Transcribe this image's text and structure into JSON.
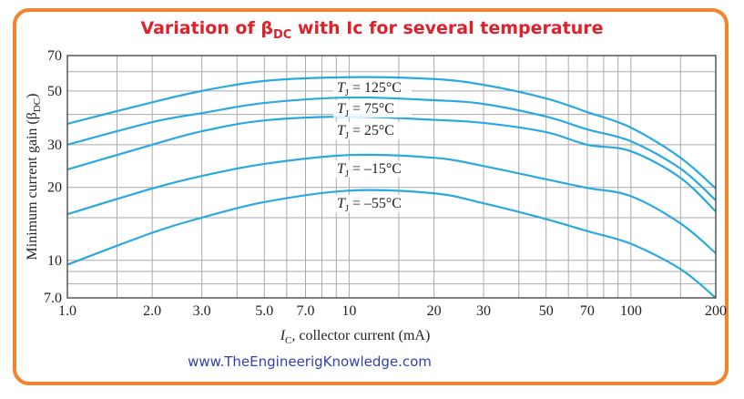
{
  "chart_data": {
    "type": "line",
    "title": "Variation of βDC with Ic for several temperature",
    "title_parts": {
      "pre": "Variation of β",
      "sub": "DC",
      "post": " with Ic for several temperature"
    },
    "xlabel": "I_C, collector current (mA)",
    "xlabel_parts": {
      "sym": "I",
      "sub": "C",
      "rest": ", collector current (mA)"
    },
    "ylabel": "Minimum current gain (βDC)",
    "ylabel_parts": {
      "pre": "Minimum current gain (β",
      "sub": "DC",
      "post": ")"
    },
    "x_scale": "log",
    "y_scale": "log",
    "xlim": [
      1,
      200
    ],
    "ylim": [
      7,
      70
    ],
    "grid": true,
    "x_ticks": [
      1,
      2,
      3,
      5,
      7,
      10,
      20,
      30,
      50,
      70,
      100,
      200
    ],
    "x_tick_labels": [
      "1.0",
      "2.0",
      "3.0",
      "5.0",
      "7.0",
      "10",
      "20",
      "30",
      "50",
      "70",
      "100",
      "200"
    ],
    "y_ticks": [
      7,
      10,
      20,
      30,
      50,
      70
    ],
    "y_tick_labels": [
      "7.0",
      "10",
      "20",
      "30",
      "50",
      "70"
    ],
    "x_grid": [
      1,
      1.5,
      2,
      3,
      4,
      5,
      6,
      7,
      8,
      9,
      10,
      15,
      20,
      30,
      40,
      50,
      60,
      70,
      80,
      90,
      100,
      150,
      200
    ],
    "y_grid": [
      7,
      8,
      9,
      10,
      15,
      20,
      30,
      40,
      50,
      60,
      70
    ],
    "line_color": "#2aa9e0",
    "x": [
      1,
      2,
      3,
      5,
      10,
      20,
      30,
      50,
      70,
      100,
      150,
      200
    ],
    "series": [
      {
        "name": "T_J = 125°C",
        "label_sym": "T",
        "label_sub": "J",
        "label_rest": " = 125°C",
        "values": [
          36.6,
          44.9,
          50,
          55,
          57,
          56,
          53,
          46.6,
          40.9,
          35.3,
          26.5,
          19.8
        ]
      },
      {
        "name": "T_J = 75°C",
        "label_sym": "T",
        "label_sub": "J",
        "label_rest": " = 75°C",
        "values": [
          30,
          37.2,
          40.5,
          44.6,
          47,
          45.8,
          44.2,
          39.2,
          34.7,
          31,
          23.9,
          17.7
        ]
      },
      {
        "name": "T_J = 25°C",
        "label_sym": "T",
        "label_sub": "J",
        "label_rest": " = 25°C",
        "values": [
          23.7,
          30,
          34.1,
          37.8,
          39.2,
          38,
          36.9,
          33.8,
          30,
          28.2,
          21.9,
          15.9
        ]
      },
      {
        "name": "T_J = –15°C",
        "label_sym": "T",
        "label_sub": "J",
        "label_rest": " = –15°C",
        "values": [
          15.5,
          19.8,
          22.3,
          25,
          27.2,
          26.5,
          24.5,
          21.6,
          19.9,
          18.4,
          14.2,
          10.7
        ]
      },
      {
        "name": "T_J = –55°C",
        "label_sym": "T",
        "label_sub": "J",
        "label_rest": " = –55°C",
        "values": [
          9.6,
          13.0,
          15,
          17.4,
          19.4,
          18.9,
          17.2,
          14.8,
          13.2,
          11.7,
          9.2,
          7.0
        ]
      }
    ]
  },
  "footer": {
    "website": "www.TheEngineerigKnowledge.com"
  },
  "colors": {
    "border": "#f5832a",
    "title": "#e0202a",
    "website": "#3340b0"
  }
}
